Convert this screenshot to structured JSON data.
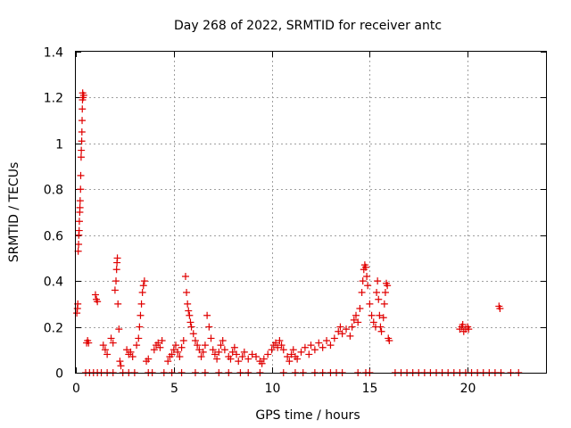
{
  "chart_data": {
    "type": "scatter",
    "title": "Day 268 of 2022, SRMTID for receiver antc",
    "xlabel": "GPS time / hours",
    "ylabel": "SRMTID / TECUs",
    "xlim": [
      0,
      24
    ],
    "ylim": [
      0,
      1.4
    ],
    "x_ticks": [
      0,
      5,
      10,
      15,
      20
    ],
    "x_tick_labels": [
      "0",
      "5",
      "10",
      "15",
      "20"
    ],
    "y_ticks": [
      0,
      0.2,
      0.4,
      0.6,
      0.8,
      1.0,
      1.2,
      1.4
    ],
    "y_tick_labels": [
      "0",
      "0.2",
      "0.4",
      "0.6",
      "0.8",
      "1",
      "1.2",
      "1.4"
    ],
    "grid": true,
    "marker": "plus",
    "series": [
      {
        "name": "antc",
        "color": "#e00000",
        "points": [
          [
            0.05,
            0.26
          ],
          [
            0.08,
            0.28
          ],
          [
            0.1,
            0.3
          ],
          [
            0.12,
            0.53
          ],
          [
            0.14,
            0.56
          ],
          [
            0.15,
            0.6
          ],
          [
            0.17,
            0.62
          ],
          [
            0.18,
            0.66
          ],
          [
            0.2,
            0.7
          ],
          [
            0.21,
            0.72
          ],
          [
            0.22,
            0.75
          ],
          [
            0.24,
            0.8
          ],
          [
            0.25,
            0.86
          ],
          [
            0.27,
            0.94
          ],
          [
            0.28,
            0.97
          ],
          [
            0.3,
            1.01
          ],
          [
            0.31,
            1.05
          ],
          [
            0.32,
            1.1
          ],
          [
            0.33,
            1.15
          ],
          [
            0.34,
            1.19
          ],
          [
            0.35,
            1.22
          ],
          [
            0.37,
            1.2
          ],
          [
            0.4,
            1.21
          ],
          [
            0.55,
            0.13
          ],
          [
            0.6,
            0.14
          ],
          [
            0.65,
            0.13
          ],
          [
            1.0,
            0.34
          ],
          [
            1.05,
            0.32
          ],
          [
            1.1,
            0.31
          ],
          [
            1.4,
            0.12
          ],
          [
            1.5,
            0.1
          ],
          [
            1.6,
            0.08
          ],
          [
            1.8,
            0.15
          ],
          [
            1.9,
            0.13
          ],
          [
            2.0,
            0.36
          ],
          [
            2.05,
            0.4
          ],
          [
            2.08,
            0.45
          ],
          [
            2.1,
            0.48
          ],
          [
            2.12,
            0.5
          ],
          [
            2.15,
            0.3
          ],
          [
            2.2,
            0.19
          ],
          [
            2.25,
            0.05
          ],
          [
            2.3,
            0.03
          ],
          [
            2.6,
            0.1
          ],
          [
            2.7,
            0.08
          ],
          [
            2.8,
            0.09
          ],
          [
            2.9,
            0.07
          ],
          [
            3.1,
            0.12
          ],
          [
            3.2,
            0.15
          ],
          [
            3.25,
            0.2
          ],
          [
            3.3,
            0.25
          ],
          [
            3.35,
            0.3
          ],
          [
            3.4,
            0.35
          ],
          [
            3.45,
            0.38
          ],
          [
            3.5,
            0.4
          ],
          [
            3.6,
            0.05
          ],
          [
            3.7,
            0.06
          ],
          [
            4.0,
            0.1
          ],
          [
            4.1,
            0.12
          ],
          [
            4.2,
            0.13
          ],
          [
            4.3,
            0.11
          ],
          [
            4.4,
            0.14
          ],
          [
            4.7,
            0.05
          ],
          [
            4.8,
            0.07
          ],
          [
            4.9,
            0.08
          ],
          [
            5.0,
            0.1
          ],
          [
            5.1,
            0.12
          ],
          [
            5.2,
            0.09
          ],
          [
            5.3,
            0.07
          ],
          [
            5.4,
            0.11
          ],
          [
            5.5,
            0.14
          ],
          [
            5.6,
            0.42
          ],
          [
            5.65,
            0.35
          ],
          [
            5.7,
            0.3
          ],
          [
            5.75,
            0.27
          ],
          [
            5.8,
            0.25
          ],
          [
            5.85,
            0.22
          ],
          [
            5.9,
            0.2
          ],
          [
            6.0,
            0.17
          ],
          [
            6.1,
            0.14
          ],
          [
            6.2,
            0.12
          ],
          [
            6.3,
            0.1
          ],
          [
            6.4,
            0.07
          ],
          [
            6.5,
            0.09
          ],
          [
            6.6,
            0.12
          ],
          [
            6.7,
            0.25
          ],
          [
            6.8,
            0.2
          ],
          [
            6.9,
            0.15
          ],
          [
            7.0,
            0.1
          ],
          [
            7.1,
            0.08
          ],
          [
            7.2,
            0.06
          ],
          [
            7.3,
            0.09
          ],
          [
            7.4,
            0.12
          ],
          [
            7.5,
            0.14
          ],
          [
            7.6,
            0.1
          ],
          [
            7.8,
            0.07
          ],
          [
            7.9,
            0.06
          ],
          [
            8.0,
            0.09
          ],
          [
            8.1,
            0.11
          ],
          [
            8.2,
            0.08
          ],
          [
            8.3,
            0.05
          ],
          [
            8.5,
            0.07
          ],
          [
            8.6,
            0.09
          ],
          [
            8.8,
            0.06
          ],
          [
            9.0,
            0.08
          ],
          [
            9.2,
            0.07
          ],
          [
            9.4,
            0.05
          ],
          [
            9.5,
            0.04
          ],
          [
            9.6,
            0.06
          ],
          [
            9.8,
            0.08
          ],
          [
            10.0,
            0.1
          ],
          [
            10.1,
            0.12
          ],
          [
            10.2,
            0.13
          ],
          [
            10.3,
            0.11
          ],
          [
            10.4,
            0.14
          ],
          [
            10.5,
            0.12
          ],
          [
            10.6,
            0.1
          ],
          [
            10.8,
            0.07
          ],
          [
            10.9,
            0.05
          ],
          [
            11.0,
            0.08
          ],
          [
            11.1,
            0.1
          ],
          [
            11.2,
            0.07
          ],
          [
            11.3,
            0.06
          ],
          [
            11.5,
            0.09
          ],
          [
            11.7,
            0.11
          ],
          [
            11.9,
            0.08
          ],
          [
            12.0,
            0.12
          ],
          [
            12.2,
            0.1
          ],
          [
            12.4,
            0.13
          ],
          [
            12.6,
            0.11
          ],
          [
            12.8,
            0.14
          ],
          [
            13.0,
            0.12
          ],
          [
            13.2,
            0.15
          ],
          [
            13.4,
            0.18
          ],
          [
            13.5,
            0.2
          ],
          [
            13.6,
            0.17
          ],
          [
            13.8,
            0.19
          ],
          [
            14.0,
            0.16
          ],
          [
            14.1,
            0.2
          ],
          [
            14.2,
            0.23
          ],
          [
            14.3,
            0.25
          ],
          [
            14.4,
            0.22
          ],
          [
            14.5,
            0.28
          ],
          [
            14.6,
            0.35
          ],
          [
            14.65,
            0.4
          ],
          [
            14.7,
            0.45
          ],
          [
            14.75,
            0.47
          ],
          [
            14.8,
            0.46
          ],
          [
            14.85,
            0.42
          ],
          [
            14.9,
            0.38
          ],
          [
            15.0,
            0.3
          ],
          [
            15.1,
            0.25
          ],
          [
            15.2,
            0.22
          ],
          [
            15.3,
            0.2
          ],
          [
            15.35,
            0.35
          ],
          [
            15.4,
            0.4
          ],
          [
            15.45,
            0.32
          ],
          [
            15.5,
            0.25
          ],
          [
            15.55,
            0.2
          ],
          [
            15.6,
            0.18
          ],
          [
            15.7,
            0.24
          ],
          [
            15.75,
            0.3
          ],
          [
            15.8,
            0.35
          ],
          [
            15.85,
            0.39
          ],
          [
            15.9,
            0.38
          ],
          [
            15.95,
            0.15
          ],
          [
            16.0,
            0.14
          ],
          [
            19.6,
            0.19
          ],
          [
            19.7,
            0.2
          ],
          [
            19.75,
            0.21
          ],
          [
            19.8,
            0.18
          ],
          [
            19.9,
            0.19
          ],
          [
            20.0,
            0.2
          ],
          [
            20.05,
            0.19
          ],
          [
            21.6,
            0.29
          ],
          [
            21.65,
            0.28
          ],
          [
            0.5,
            0.0
          ],
          [
            0.7,
            0.0
          ],
          [
            0.9,
            0.0
          ],
          [
            1.1,
            0.0
          ],
          [
            1.3,
            0.0
          ],
          [
            1.6,
            0.0
          ],
          [
            1.9,
            0.0
          ],
          [
            2.4,
            0.0
          ],
          [
            2.7,
            0.0
          ],
          [
            3.0,
            0.0
          ],
          [
            3.7,
            0.0
          ],
          [
            3.9,
            0.0
          ],
          [
            4.5,
            0.0
          ],
          [
            4.9,
            0.0
          ],
          [
            5.4,
            0.0
          ],
          [
            6.1,
            0.0
          ],
          [
            6.6,
            0.0
          ],
          [
            7.3,
            0.0
          ],
          [
            7.8,
            0.0
          ],
          [
            8.4,
            0.0
          ],
          [
            8.8,
            0.0
          ],
          [
            9.4,
            0.0
          ],
          [
            10.6,
            0.0
          ],
          [
            11.2,
            0.0
          ],
          [
            11.6,
            0.0
          ],
          [
            12.2,
            0.0
          ],
          [
            12.6,
            0.0
          ],
          [
            13.0,
            0.0
          ],
          [
            13.3,
            0.0
          ],
          [
            13.6,
            0.0
          ],
          [
            14.4,
            0.0
          ],
          [
            14.8,
            0.0
          ],
          [
            15.0,
            0.0
          ],
          [
            16.3,
            0.0
          ],
          [
            16.6,
            0.0
          ],
          [
            16.9,
            0.0
          ],
          [
            17.2,
            0.0
          ],
          [
            17.5,
            0.0
          ],
          [
            17.8,
            0.0
          ],
          [
            18.1,
            0.0
          ],
          [
            18.4,
            0.0
          ],
          [
            18.7,
            0.0
          ],
          [
            19.0,
            0.0
          ],
          [
            19.3,
            0.0
          ],
          [
            19.6,
            0.0
          ],
          [
            19.9,
            0.0
          ],
          [
            20.2,
            0.0
          ],
          [
            20.5,
            0.0
          ],
          [
            20.8,
            0.0
          ],
          [
            21.1,
            0.0
          ],
          [
            21.4,
            0.0
          ],
          [
            21.7,
            0.0
          ],
          [
            22.2,
            0.0
          ],
          [
            22.6,
            0.0
          ]
        ]
      }
    ]
  }
}
